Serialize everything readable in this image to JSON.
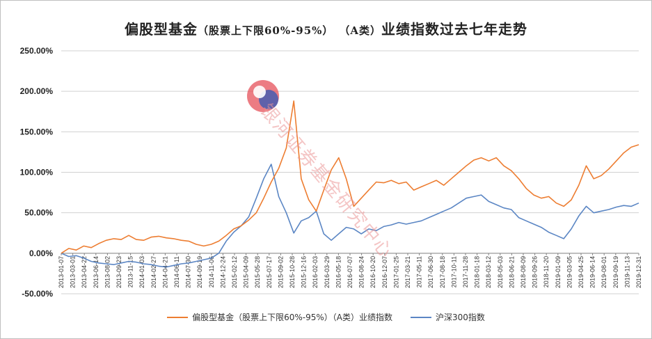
{
  "title_main": "偏股型基金",
  "title_paren": "（股票上下限60%-95%）",
  "title_class": "（A类）",
  "title_tail": "业绩指数过去七年走势",
  "watermark_text": "银河证券基金研究中心",
  "legend": [
    {
      "label": "偏股型基金（股票上下限60%-95%）（A类）业绩指数",
      "color": "#ED7D31"
    },
    {
      "label": "沪深300指数",
      "color": "#5B86C4"
    }
  ],
  "chart_data": {
    "type": "line",
    "y_ticks": [
      "250.00%",
      "200.00%",
      "150.00%",
      "100.00%",
      "50.00%",
      "0.00%",
      "-50.00%"
    ],
    "ylim": [
      -50,
      250
    ],
    "x_ticks": [
      "2013-01-07",
      "2013-03-01",
      "2013-04-22",
      "2013-06-14",
      "2013-08-02",
      "2013-09-23",
      "2013-11-15",
      "2014-01-03",
      "2014-02-27",
      "2014-04-21",
      "2014-06-11",
      "2014-07-30",
      "2014-09-19",
      "2014-11-06",
      "2014-12-24",
      "2015-02-12",
      "2015-04-09",
      "2015-05-28",
      "2015-07-17",
      "2015-09-02",
      "2015-10-28",
      "2015-12-16",
      "2016-02-03",
      "2016-03-29",
      "2016-05-18",
      "2016-07-07",
      "2016-08-24",
      "2016-10-20",
      "2016-12-07",
      "2017-01-25",
      "2017-03-21",
      "2017-05-11",
      "2017-06-30",
      "2017-08-18",
      "2017-10-11",
      "2017-11-28",
      "2018-01-18",
      "2018-03-12",
      "2018-05-03",
      "2018-06-21",
      "2018-08-09",
      "2018-09-26",
      "2018-11-20",
      "2019-01-09",
      "2019-03-05",
      "2019-04-25",
      "2019-06-14",
      "2019-08-01",
      "2019-09-19",
      "2019-11-13",
      "2019-12-31"
    ],
    "series": [
      {
        "name": "偏股型基金（股票上下限60%-95%）（A类）业绩指数",
        "values": [
          0,
          6,
          4,
          9,
          7,
          12,
          16,
          18,
          17,
          22,
          17,
          16,
          20,
          21,
          19,
          18,
          16,
          15,
          11,
          9,
          11,
          15,
          22,
          30,
          34,
          41,
          50,
          68,
          88,
          105,
          130,
          188,
          92,
          66,
          52,
          78,
          103,
          118,
          92,
          58,
          68,
          78,
          88,
          87,
          90,
          86,
          88,
          78,
          82,
          86,
          90,
          84,
          92,
          100,
          108,
          115,
          118,
          114,
          118,
          108,
          102,
          92,
          80,
          72,
          68,
          70,
          62,
          58,
          66,
          84,
          108,
          92,
          96,
          104,
          114,
          124,
          131,
          134
        ]
      },
      {
        "name": "沪深300指数",
        "values": [
          0,
          -4,
          -3,
          -6,
          -10,
          -12,
          -13,
          -14,
          -12,
          -10,
          -11,
          -13,
          -14,
          -16,
          -17,
          -15,
          -13,
          -12,
          -10,
          -8,
          -6,
          0,
          15,
          26,
          34,
          45,
          68,
          92,
          110,
          70,
          50,
          25,
          40,
          44,
          52,
          24,
          16,
          24,
          32,
          30,
          24,
          30,
          28,
          33,
          35,
          38,
          36,
          38,
          40,
          44,
          48,
          52,
          56,
          62,
          68,
          70,
          72,
          64,
          60,
          56,
          54,
          44,
          40,
          36,
          32,
          26,
          22,
          18,
          30,
          46,
          58,
          50,
          52,
          54,
          57,
          59,
          58,
          62
        ]
      }
    ]
  }
}
